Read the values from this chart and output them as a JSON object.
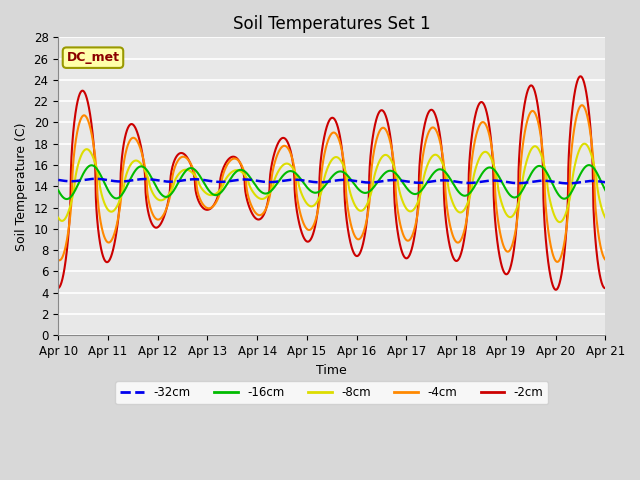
{
  "title": "Soil Temperatures Set 1",
  "xlabel": "Time",
  "ylabel": "Soil Temperature (C)",
  "annotation": "DC_met",
  "ylim": [
    0,
    28
  ],
  "yticks": [
    0,
    2,
    4,
    6,
    8,
    10,
    12,
    14,
    16,
    18,
    20,
    22,
    24,
    26,
    28
  ],
  "x_labels": [
    "Apr 10",
    "Apr 11",
    "Apr 12",
    "Apr 13",
    "Apr 14",
    "Apr 15",
    "Apr 16",
    "Apr 17",
    "Apr 18",
    "Apr 19",
    "Apr 20",
    "Apr 21"
  ],
  "series": {
    "-32cm": {
      "color": "#0000ee",
      "linewidth": 1.8,
      "linestyle": "--"
    },
    "-16cm": {
      "color": "#00bb00",
      "linewidth": 1.5,
      "linestyle": "-"
    },
    "-8cm": {
      "color": "#dddd00",
      "linewidth": 1.5,
      "linestyle": "-"
    },
    "-4cm": {
      "color": "#ff8800",
      "linewidth": 1.5,
      "linestyle": "-"
    },
    "-2cm": {
      "color": "#cc0000",
      "linewidth": 1.5,
      "linestyle": "-"
    }
  },
  "background_color": "#d8d8d8",
  "plot_bg_color": "#e8e8e8",
  "grid_color": "#ffffff",
  "title_fontsize": 12,
  "figwidth": 6.4,
  "figheight": 4.8,
  "dpi": 100
}
